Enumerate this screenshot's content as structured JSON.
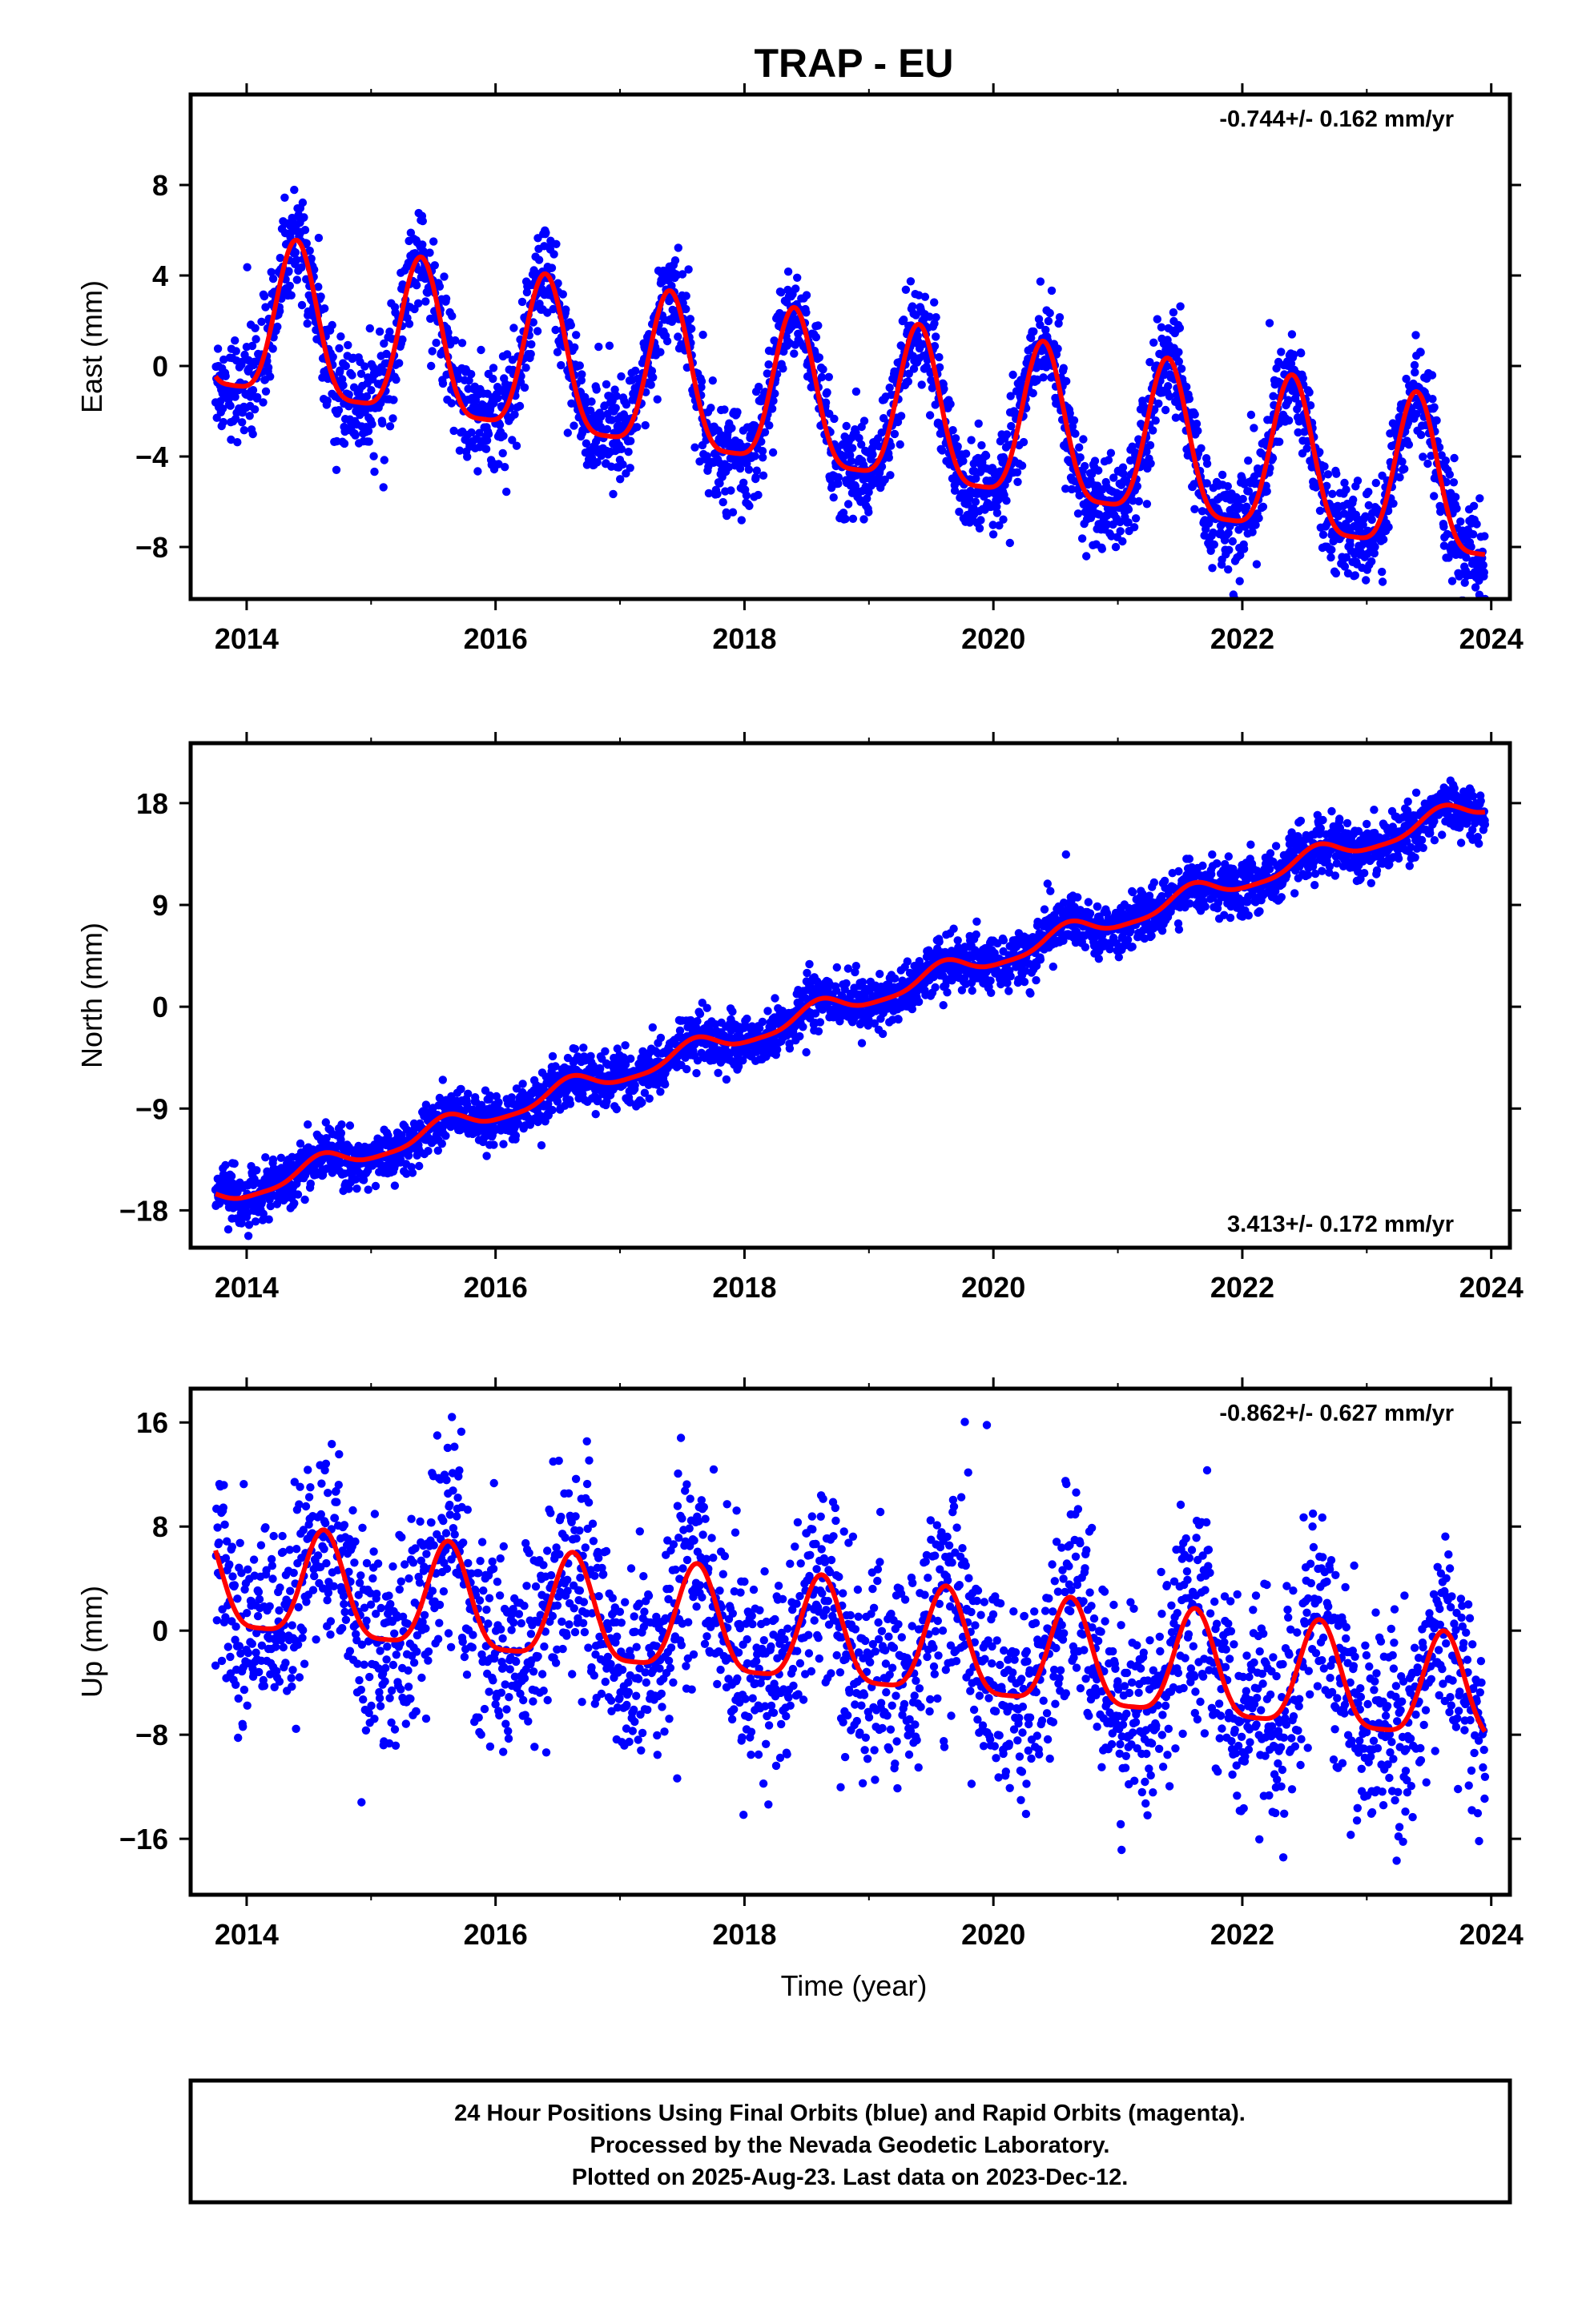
{
  "title": "TRAP - EU",
  "xlabel": "Time (year)",
  "x_ticks": [
    "2014",
    "2016",
    "2018",
    "2020",
    "2022",
    "2024"
  ],
  "colors": {
    "points": "#0000ff",
    "fit": "#ff0000",
    "frame": "#000000"
  },
  "footer": [
    "24 Hour Positions Using Final Orbits (blue) and Rapid Orbits (magenta).",
    "Processed by the Nevada Geodetic Laboratory.",
    "Plotted on 2025-Aug-23. Last data on 2023-Dec-12."
  ],
  "chart_data": [
    {
      "type": "scatter",
      "ylabel": "East (mm)",
      "rate": "-0.744+/- 0.162 mm/yr",
      "rate_position": "top-right",
      "xlim": [
        2013.55,
        2024.15
      ],
      "ylim": [
        -10.3,
        12.0
      ],
      "y_ticks": [
        "8",
        "4",
        "0",
        "−4",
        "−8"
      ],
      "x_start": 2013.75,
      "x_end": 2023.95,
      "trend_mm_per_yr": -0.744,
      "mean_at_start": 1.8,
      "annual_amplitude_mm": 3.4,
      "peak_fraction_of_year": 0.4,
      "scatter_sd_mm": 1.1,
      "n_points": 3100
    },
    {
      "type": "scatter",
      "ylabel": "North (mm)",
      "rate": "3.413+/- 0.172 mm/yr",
      "rate_position": "bottom-right",
      "xlim": [
        2013.55,
        2024.15
      ],
      "ylim": [
        -21.3,
        23.3
      ],
      "y_ticks": [
        "18",
        "9",
        "0",
        "−9",
        "−18"
      ],
      "x_start": 2013.75,
      "x_end": 2023.95,
      "trend_mm_per_yr": 3.413,
      "mean_at_start": -17.0,
      "annual_amplitude_mm": 0.9,
      "peak_fraction_of_year": 0.6,
      "scatter_sd_mm": 1.2,
      "n_points": 3100
    },
    {
      "type": "scatter",
      "ylabel": "Up (mm)",
      "rate": "-0.862+/- 0.627 mm/yr",
      "rate_position": "top-right",
      "xlim": [
        2013.55,
        2024.15
      ],
      "ylim": [
        -20.3,
        18.6
      ],
      "y_ticks": [
        "16",
        "8",
        "0",
        "−8",
        "−16"
      ],
      "x_start": 2013.75,
      "x_end": 2023.95,
      "trend_mm_per_yr": -0.862,
      "mean_at_start": 3.5,
      "annual_amplitude_mm": 4.0,
      "peak_fraction_of_year": 0.62,
      "scatter_sd_mm": 4.0,
      "n_points": 2600
    }
  ]
}
